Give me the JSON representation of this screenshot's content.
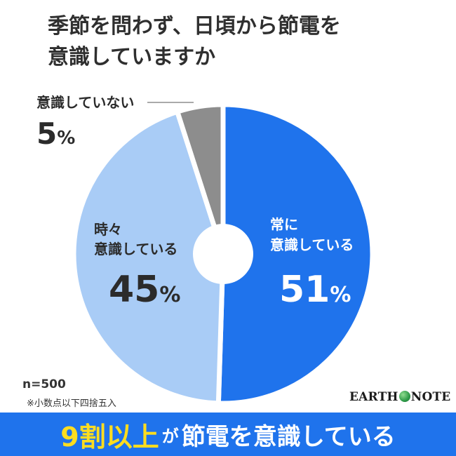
{
  "title_line1": "季節を問わず、日頃から節電を",
  "title_line2": "意識していますか",
  "chart_data": {
    "type": "pie",
    "style": "donut",
    "slices": [
      {
        "label_line1": "常に",
        "label_line2": "意識している",
        "value": 51,
        "pct_text": "51",
        "color": "#1f73ec",
        "label_color": "#ffffff"
      },
      {
        "label_line1": "時々",
        "label_line2": "意識している",
        "value": 45,
        "pct_text": "45",
        "color": "#a9ccf6",
        "label_color": "#2b2b2b"
      },
      {
        "label_line1": "意識していない",
        "label_line2": "",
        "value": 5,
        "pct_text": "5",
        "color": "#8d8d8d",
        "label_color": "#2b2b2b"
      }
    ],
    "percent_sign": "%",
    "start": "12 o'clock",
    "direction": "clockwise"
  },
  "sample_size": "n=500",
  "footnote": "※小数点以下四捨五入",
  "logo": {
    "left": "EARTH",
    "right": "NOTE"
  },
  "banner": {
    "highlight": "9割以上",
    "particle": "が",
    "rest": "節電を意識している"
  },
  "colors": {
    "brand_blue": "#1f73ec",
    "highlight_yellow": "#ffdd1f"
  }
}
